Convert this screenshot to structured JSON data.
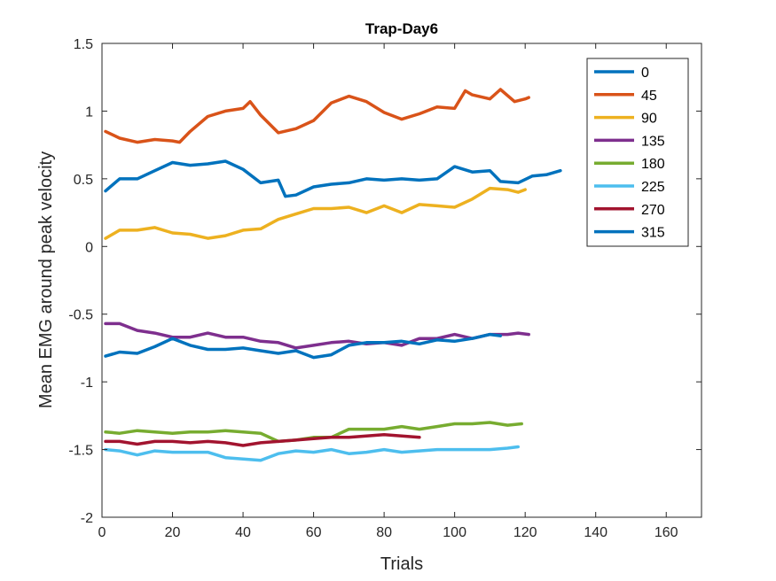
{
  "chart_data": {
    "type": "line",
    "title": "Trap-Day6",
    "xlabel": "Trials",
    "ylabel": "Mean EMG around peak velocity",
    "xlim": [
      0,
      170
    ],
    "ylim": [
      -2,
      1.5
    ],
    "xticks": [
      "0",
      "20",
      "40",
      "60",
      "80",
      "100",
      "120",
      "140",
      "160"
    ],
    "yticks": [
      "-2",
      "-1.5",
      "-1",
      "-0.5",
      "0",
      "0.5",
      "1",
      "1.5"
    ],
    "grid": false,
    "legend_position": "top-right",
    "series": [
      {
        "name": "0",
        "color": "#0072BD",
        "x": [
          1,
          5,
          10,
          15,
          20,
          25,
          30,
          35,
          40,
          45,
          50,
          52,
          55,
          60,
          65,
          70,
          75,
          80,
          85,
          90,
          95,
          100,
          105,
          110,
          113,
          118,
          122,
          126,
          130
        ],
        "y": [
          0.41,
          0.5,
          0.5,
          0.56,
          0.62,
          0.6,
          0.61,
          0.63,
          0.57,
          0.47,
          0.49,
          0.37,
          0.38,
          0.44,
          0.46,
          0.47,
          0.5,
          0.49,
          0.5,
          0.49,
          0.5,
          0.59,
          0.55,
          0.56,
          0.48,
          0.47,
          0.52,
          0.53,
          0.56
        ]
      },
      {
        "name": "45",
        "color": "#D95319",
        "x": [
          1,
          5,
          10,
          15,
          20,
          22,
          25,
          30,
          35,
          40,
          42,
          45,
          50,
          55,
          60,
          65,
          70,
          75,
          80,
          85,
          90,
          95,
          100,
          103,
          105,
          110,
          113,
          117,
          120,
          121
        ],
        "y": [
          0.85,
          0.8,
          0.77,
          0.79,
          0.78,
          0.77,
          0.85,
          0.96,
          1.0,
          1.02,
          1.07,
          0.97,
          0.84,
          0.87,
          0.93,
          1.06,
          1.11,
          1.07,
          0.99,
          0.94,
          0.98,
          1.03,
          1.02,
          1.15,
          1.12,
          1.09,
          1.16,
          1.07,
          1.09,
          1.1
        ]
      },
      {
        "name": "90",
        "color": "#EDB120",
        "x": [
          1,
          5,
          10,
          15,
          20,
          25,
          30,
          35,
          40,
          45,
          50,
          55,
          60,
          65,
          70,
          75,
          80,
          85,
          90,
          95,
          100,
          105,
          110,
          115,
          118,
          120
        ],
        "y": [
          0.06,
          0.12,
          0.12,
          0.14,
          0.1,
          0.09,
          0.06,
          0.08,
          0.12,
          0.13,
          0.2,
          0.24,
          0.28,
          0.28,
          0.29,
          0.25,
          0.3,
          0.25,
          0.31,
          0.3,
          0.29,
          0.35,
          0.43,
          0.42,
          0.4,
          0.42
        ]
      },
      {
        "name": "135",
        "color": "#7E2F8E",
        "x": [
          1,
          5,
          10,
          15,
          20,
          25,
          30,
          35,
          40,
          45,
          50,
          55,
          60,
          65,
          70,
          75,
          80,
          85,
          90,
          95,
          100,
          105,
          110,
          115,
          118,
          121
        ],
        "y": [
          -0.57,
          -0.57,
          -0.62,
          -0.64,
          -0.67,
          -0.67,
          -0.64,
          -0.67,
          -0.67,
          -0.7,
          -0.71,
          -0.75,
          -0.73,
          -0.71,
          -0.7,
          -0.72,
          -0.71,
          -0.73,
          -0.68,
          -0.68,
          -0.65,
          -0.68,
          -0.65,
          -0.65,
          -0.64,
          -0.65
        ]
      },
      {
        "name": "180",
        "color": "#77AC30",
        "x": [
          1,
          5,
          10,
          15,
          20,
          25,
          30,
          35,
          40,
          45,
          50,
          55,
          60,
          65,
          70,
          75,
          80,
          85,
          90,
          95,
          100,
          105,
          110,
          115,
          119
        ],
        "y": [
          -1.37,
          -1.38,
          -1.36,
          -1.37,
          -1.38,
          -1.37,
          -1.37,
          -1.36,
          -1.37,
          -1.38,
          -1.44,
          -1.43,
          -1.41,
          -1.41,
          -1.35,
          -1.35,
          -1.35,
          -1.33,
          -1.35,
          -1.33,
          -1.31,
          -1.31,
          -1.3,
          -1.32,
          -1.31
        ]
      },
      {
        "name": "225",
        "color": "#4DBEEE",
        "x": [
          1,
          5,
          10,
          15,
          20,
          25,
          30,
          35,
          40,
          45,
          50,
          55,
          60,
          65,
          70,
          75,
          80,
          85,
          90,
          95,
          100,
          105,
          110,
          115,
          118
        ],
        "y": [
          -1.5,
          -1.51,
          -1.54,
          -1.51,
          -1.52,
          -1.52,
          -1.52,
          -1.56,
          -1.57,
          -1.58,
          -1.53,
          -1.51,
          -1.52,
          -1.5,
          -1.53,
          -1.52,
          -1.5,
          -1.52,
          -1.51,
          -1.5,
          -1.5,
          -1.5,
          -1.5,
          -1.49,
          -1.48
        ]
      },
      {
        "name": "270",
        "color": "#A2142F",
        "x": [
          1,
          5,
          10,
          15,
          20,
          25,
          30,
          35,
          40,
          45,
          50,
          55,
          60,
          65,
          70,
          75,
          80,
          85,
          90
        ],
        "y": [
          -1.44,
          -1.44,
          -1.46,
          -1.44,
          -1.44,
          -1.45,
          -1.44,
          -1.45,
          -1.47,
          -1.45,
          -1.44,
          -1.43,
          -1.42,
          -1.41,
          -1.41,
          -1.4,
          -1.39,
          -1.4,
          -1.41
        ]
      },
      {
        "name": "315",
        "color": "#0072BD",
        "x": [
          1,
          5,
          10,
          15,
          20,
          25,
          30,
          35,
          40,
          45,
          50,
          55,
          60,
          65,
          70,
          75,
          80,
          85,
          90,
          95,
          100,
          105,
          110,
          113
        ],
        "y": [
          -0.81,
          -0.78,
          -0.79,
          -0.74,
          -0.68,
          -0.73,
          -0.76,
          -0.76,
          -0.75,
          -0.77,
          -0.79,
          -0.77,
          -0.82,
          -0.8,
          -0.73,
          -0.71,
          -0.71,
          -0.7,
          -0.72,
          -0.69,
          -0.7,
          -0.68,
          -0.65,
          -0.66
        ]
      }
    ]
  }
}
